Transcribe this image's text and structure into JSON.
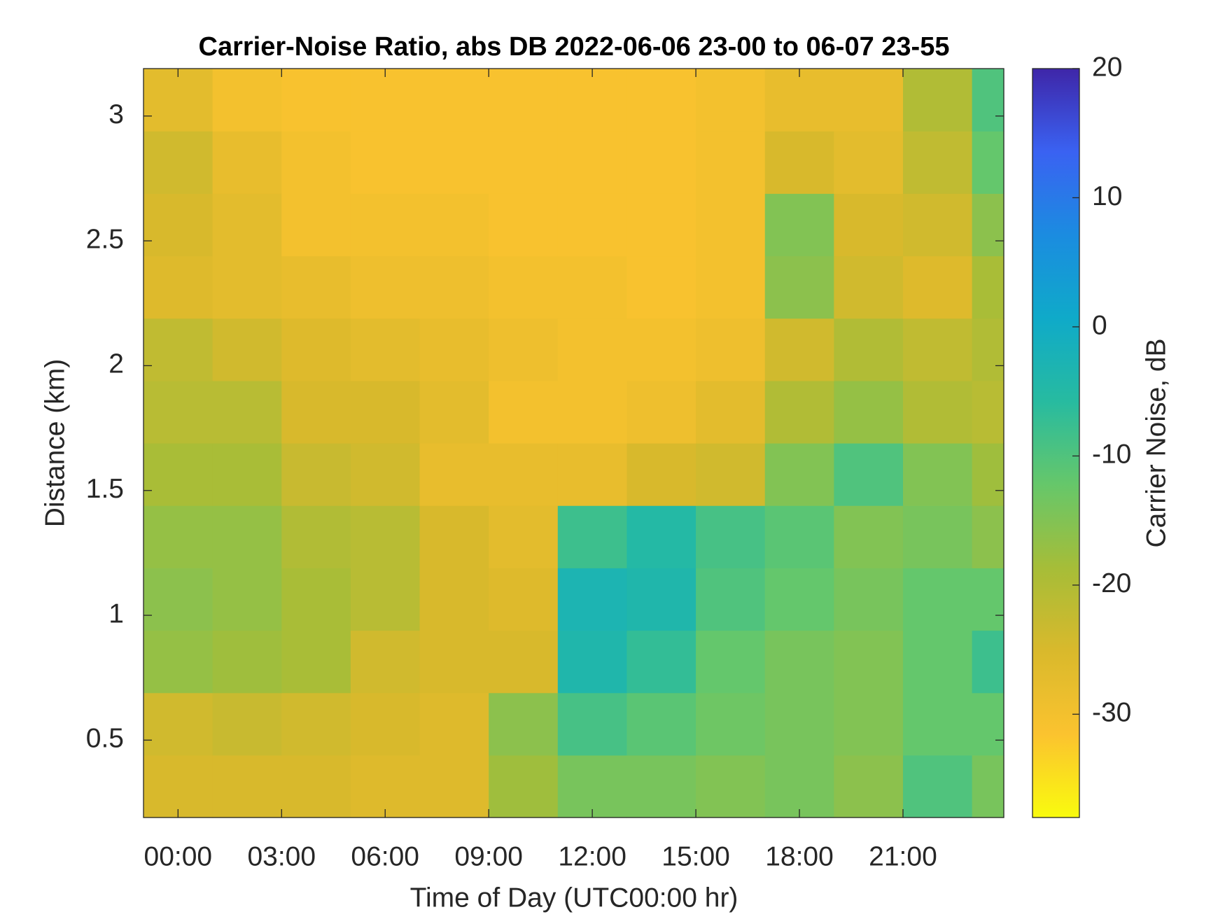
{
  "chart_data": {
    "type": "heatmap",
    "title": "Carrier-Noise Ratio, abs DB 2022-06-06 23-00 to 06-07 23-55",
    "x_label": "Time of Day (UTC00:00 hr)",
    "y_label": "Distance (km)",
    "colorbar_label": "Carrier Noise, dB",
    "x": [
      -1,
      1,
      3,
      5,
      7,
      9,
      11,
      13,
      15,
      17,
      19,
      21,
      23,
      23.92
    ],
    "y": [
      0.19,
      0.44,
      0.69,
      0.94,
      1.19,
      1.44,
      1.69,
      1.94,
      2.19,
      2.44,
      2.69,
      2.94,
      3.19
    ],
    "values": [
      [
        -25,
        -25,
        -25,
        -26,
        -26,
        -18,
        -14,
        -14,
        -15,
        -14,
        -16,
        -10,
        -14
      ],
      [
        -24,
        -23,
        -24,
        -25,
        -26,
        -16,
        -9,
        -11,
        -13,
        -14,
        -15,
        -12,
        -12
      ],
      [
        -17,
        -18,
        -19,
        -24,
        -25,
        -25,
        -4,
        -7,
        -12,
        -14,
        -15,
        -12,
        -8
      ],
      [
        -16,
        -17,
        -19,
        -21,
        -25,
        -26,
        -3,
        -4,
        -10,
        -12,
        -14,
        -12,
        -12
      ],
      [
        -17,
        -17,
        -20,
        -21,
        -25,
        -27,
        -8,
        -5,
        -9,
        -11,
        -15,
        -14,
        -16
      ],
      [
        -19,
        -19,
        -23,
        -24,
        -28,
        -28,
        -28,
        -25,
        -24,
        -15,
        -10,
        -15,
        -18
      ],
      [
        -21,
        -21,
        -25,
        -25,
        -27,
        -30,
        -30,
        -29,
        -27,
        -20,
        -17,
        -20,
        -21
      ],
      [
        -22,
        -24,
        -26,
        -27,
        -28,
        -29,
        -30,
        -30,
        -29,
        -24,
        -20,
        -22,
        -20
      ],
      [
        -26,
        -27,
        -28,
        -29,
        -29,
        -30,
        -30,
        -31,
        -30,
        -16,
        -24,
        -26,
        -19
      ],
      [
        -25,
        -27,
        -30,
        -30,
        -30,
        -31,
        -31,
        -31,
        -30,
        -15,
        -25,
        -24,
        -16
      ],
      [
        -24,
        -28,
        -30,
        -31,
        -31,
        -31,
        -31,
        -31,
        -30,
        -25,
        -27,
        -22,
        -12
      ],
      [
        -27,
        -30,
        -31,
        -31,
        -31,
        -31,
        -31,
        -31,
        -30,
        -28,
        -28,
        -20,
        -10
      ]
    ],
    "xlim": [
      -1,
      23.92
    ],
    "ylim": [
      0.19,
      3.19
    ],
    "xticks": [
      {
        "value": 0,
        "label": "00:00"
      },
      {
        "value": 3,
        "label": "03:00"
      },
      {
        "value": 6,
        "label": "06:00"
      },
      {
        "value": 9,
        "label": "09:00"
      },
      {
        "value": 12,
        "label": "12:00"
      },
      {
        "value": 15,
        "label": "15:00"
      },
      {
        "value": 18,
        "label": "18:00"
      },
      {
        "value": 21,
        "label": "21:00"
      }
    ],
    "yticks": [
      0.5,
      1,
      1.5,
      2,
      2.5,
      3
    ],
    "clim": [
      -38,
      20
    ],
    "cticks": [
      -30,
      -20,
      -10,
      0,
      10,
      20
    ],
    "colormap": [
      "#f9fb0e",
      "#fbc32f",
      "#d9b92c",
      "#a6bd38",
      "#66c76a",
      "#27bba0",
      "#0faac9",
      "#1b8ce0",
      "#3a62f2",
      "#3e26a8"
    ]
  }
}
